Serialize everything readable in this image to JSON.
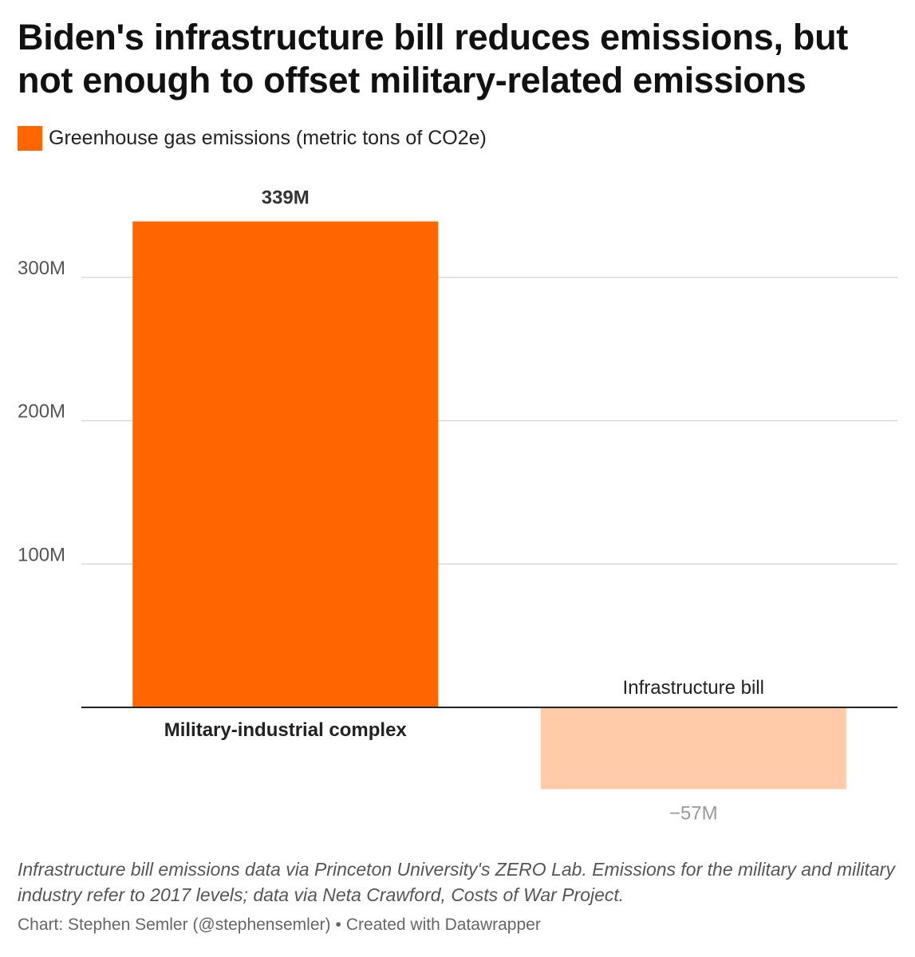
{
  "title": "Biden's infrastructure bill reduces emissions, but not enough to offset military-related emissions",
  "legend": {
    "label": "Greenhouse gas emissions (metric tons of CO2e)",
    "color": "#ff6600"
  },
  "chart_data": {
    "type": "bar",
    "categories": [
      "Military-industrial complex",
      "Infrastructure bill"
    ],
    "values": [
      339000000,
      -57000000
    ],
    "value_labels": [
      "339M",
      "−57M"
    ],
    "colors": [
      "#ff6600",
      "#ffcba8"
    ],
    "ylim": [
      -57000000,
      339000000
    ],
    "yticks": [
      100000000,
      200000000,
      300000000
    ],
    "ytick_labels": [
      "100M",
      "200M",
      "300M"
    ],
    "grid": true,
    "legend_position": "top-left"
  },
  "footnote": "Infrastructure bill emissions data via Princeton University's ZERO Lab. Emissions for the military and military industry refer to 2017 levels; data via Neta Crawford, Costs of War Project.",
  "credit": {
    "chart_by": "Chart: Stephen Semler (@stephensemler)",
    "separator": "•",
    "created_with": "Created with Datawrapper"
  }
}
